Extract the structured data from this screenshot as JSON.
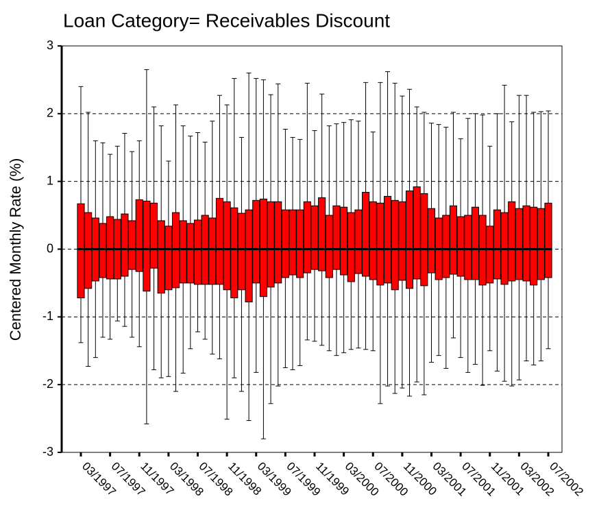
{
  "chart_data": {
    "type": "boxplot",
    "title": "Loan Category= Receivables Discount",
    "y_label": "Centered Monthly Rate (%)",
    "categories": [
      "03/1997",
      null,
      null,
      null,
      "07/1997",
      null,
      null,
      null,
      "11/1997",
      null,
      null,
      null,
      "03/1998",
      null,
      null,
      null,
      "07/1998",
      null,
      null,
      null,
      "11/1998",
      null,
      null,
      null,
      "03/1999",
      null,
      null,
      null,
      "07/1999",
      null,
      null,
      null,
      "11/1999",
      null,
      null,
      null,
      "03/2000",
      null,
      null,
      null,
      "07/2000",
      null,
      null,
      null,
      "11/2000",
      null,
      null,
      null,
      "03/2001",
      null,
      null,
      null,
      "07/2001",
      null,
      null,
      null,
      "11/2001",
      null,
      null,
      null,
      "03/2002",
      null,
      null,
      null,
      "07/2002"
    ],
    "whisker_high": [
      2.4,
      2.02,
      1.6,
      1.57,
      1.4,
      1.52,
      1.71,
      1.44,
      1.6,
      2.65,
      2.1,
      1.82,
      1.3,
      2.13,
      1.82,
      1.67,
      1.72,
      1.58,
      1.89,
      2.27,
      2.13,
      2.52,
      1.65,
      2.6,
      2.52,
      2.5,
      2.28,
      2.44,
      1.77,
      1.65,
      1.62,
      2.45,
      1.75,
      2.29,
      1.82,
      1.85,
      1.87,
      1.91,
      1.89,
      2.46,
      1.73,
      2.46,
      2.62,
      2.45,
      2.26,
      2.36,
      2.1,
      2.02,
      1.86,
      1.84,
      1.8,
      2.02,
      1.63,
      1.93,
      2.0,
      1.98,
      1.52,
      2.0,
      2.42,
      1.88,
      2.27,
      2.27,
      2.02,
      2.03,
      2.04
    ],
    "q3": [
      0.67,
      0.54,
      0.46,
      0.38,
      0.48,
      0.44,
      0.52,
      0.42,
      0.73,
      0.71,
      0.68,
      0.42,
      0.34,
      0.54,
      0.42,
      0.38,
      0.43,
      0.5,
      0.46,
      0.75,
      0.7,
      0.61,
      0.53,
      0.58,
      0.72,
      0.74,
      0.7,
      0.7,
      0.58,
      0.58,
      0.58,
      0.7,
      0.64,
      0.76,
      0.5,
      0.64,
      0.62,
      0.54,
      0.58,
      0.84,
      0.7,
      0.68,
      0.78,
      0.72,
      0.7,
      0.86,
      0.92,
      0.82,
      0.6,
      0.46,
      0.5,
      0.64,
      0.48,
      0.5,
      0.62,
      0.5,
      0.34,
      0.58,
      0.54,
      0.7,
      0.6,
      0.64,
      0.62,
      0.6,
      0.68
    ],
    "median": [
      0,
      0,
      0,
      0,
      0,
      0,
      0,
      0,
      0,
      0,
      0,
      0,
      0,
      0,
      0,
      0,
      0,
      0,
      0,
      0,
      0,
      0,
      0,
      0,
      0,
      0,
      0,
      0,
      0,
      0,
      0,
      0,
      0,
      0,
      0,
      0,
      0,
      0,
      0,
      0,
      0,
      0,
      0,
      0,
      0,
      0,
      0,
      0,
      0,
      0,
      0,
      0,
      0,
      0,
      0,
      0,
      0,
      0,
      0,
      0,
      0,
      0,
      0,
      0,
      0
    ],
    "q1": [
      -0.72,
      -0.58,
      -0.47,
      -0.42,
      -0.44,
      -0.44,
      -0.4,
      -0.3,
      -0.33,
      -0.62,
      -0.28,
      -0.65,
      -0.6,
      -0.57,
      -0.5,
      -0.5,
      -0.52,
      -0.52,
      -0.52,
      -0.52,
      -0.6,
      -0.72,
      -0.6,
      -0.78,
      -0.5,
      -0.7,
      -0.56,
      -0.5,
      -0.42,
      -0.38,
      -0.42,
      -0.35,
      -0.3,
      -0.32,
      -0.42,
      -0.3,
      -0.38,
      -0.48,
      -0.36,
      -0.4,
      -0.45,
      -0.53,
      -0.5,
      -0.6,
      -0.46,
      -0.58,
      -0.44,
      -0.54,
      -0.35,
      -0.45,
      -0.42,
      -0.37,
      -0.4,
      -0.45,
      -0.45,
      -0.53,
      -0.5,
      -0.44,
      -0.52,
      -0.47,
      -0.45,
      -0.47,
      -0.53,
      -0.45,
      -0.42
    ],
    "whisker_low": [
      -1.38,
      -1.73,
      -1.6,
      -1.3,
      -1.33,
      -1.06,
      -1.14,
      -1.3,
      -1.44,
      -2.58,
      -1.78,
      -1.9,
      -1.88,
      -2.1,
      -1.83,
      -1.47,
      -1.22,
      -1.33,
      -1.55,
      -1.62,
      -2.51,
      -1.9,
      -2.1,
      -2.53,
      -1.82,
      -2.8,
      -2.28,
      -2.02,
      -1.75,
      -1.78,
      -1.72,
      -1.34,
      -1.36,
      -1.42,
      -1.5,
      -1.57,
      -1.53,
      -1.48,
      -1.46,
      -1.48,
      -1.5,
      -2.28,
      -2.02,
      -2.13,
      -2.05,
      -2.17,
      -1.96,
      -2.15,
      -1.67,
      -1.57,
      -1.76,
      -1.31,
      -1.6,
      -1.82,
      -1.7,
      -2.01,
      -1.5,
      -1.8,
      -1.95,
      -2.02,
      -1.93,
      -1.65,
      -1.71,
      -1.65,
      -1.47
    ],
    "color": "#ff0000",
    "ylim": [
      -3,
      3
    ],
    "yticks": [
      -3,
      -2,
      -1,
      0,
      1,
      2,
      3
    ],
    "grid": true
  }
}
